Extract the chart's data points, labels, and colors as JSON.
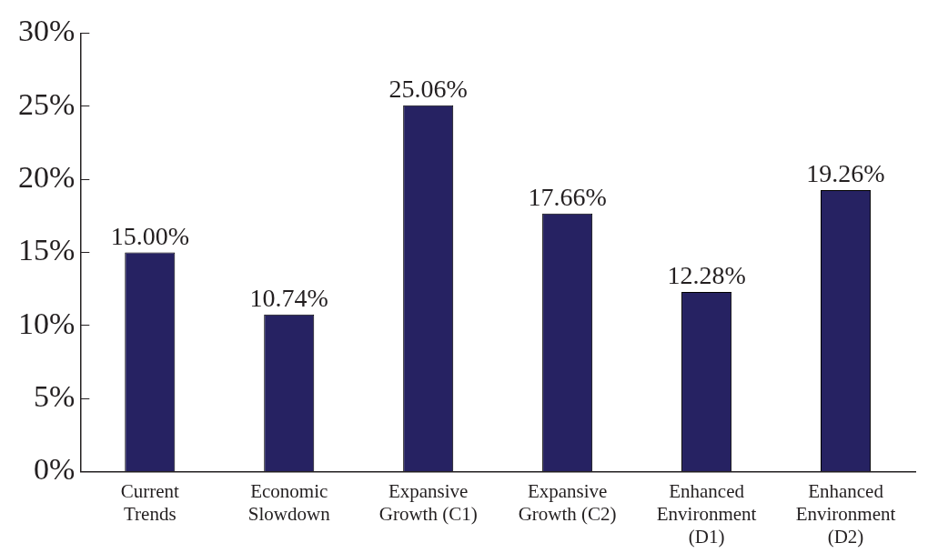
{
  "chart_data": {
    "type": "bar",
    "categories": [
      "Current Trends",
      "Economic Slowdown",
      "Expansive Growth (C1)",
      "Expansive Growth (C2)",
      "Enhanced Environment (D1)",
      "Enhanced Environment (D2)"
    ],
    "values": [
      15.0,
      10.74,
      25.06,
      17.66,
      12.28,
      19.26
    ],
    "value_labels": [
      "15.00%",
      "10.74%",
      "25.06%",
      "17.66%",
      "12.28%",
      "19.26%"
    ],
    "color": "#262262",
    "ylim": [
      0,
      30
    ],
    "yticks": [
      {
        "value": 0,
        "label": "0%"
      },
      {
        "value": 5,
        "label": "5%"
      },
      {
        "value": 10,
        "label": "10%"
      },
      {
        "value": 15,
        "label": "15%"
      },
      {
        "value": 20,
        "label": "20%"
      },
      {
        "value": 25,
        "label": "25%"
      },
      {
        "value": 30,
        "label": "30%"
      }
    ],
    "grid": false,
    "legend": false
  }
}
